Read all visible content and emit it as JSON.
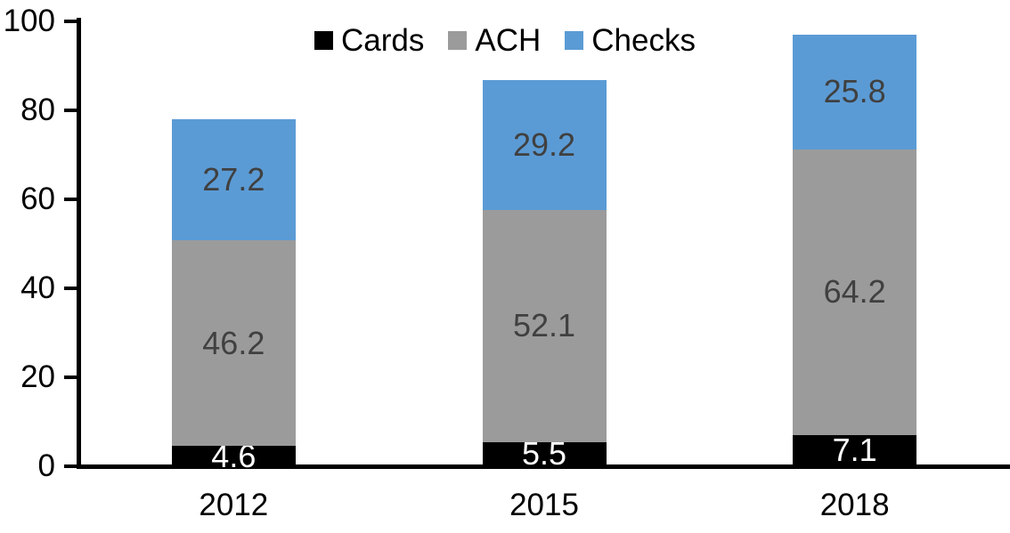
{
  "chart_data": {
    "type": "bar",
    "stacked": true,
    "title": "",
    "xlabel": "",
    "ylabel": "",
    "categories": [
      "2012",
      "2015",
      "2018"
    ],
    "series": [
      {
        "name": "Cards",
        "color": "#000000",
        "label_color": "#FFFFFF",
        "values": [
          4.6,
          5.5,
          7.1
        ]
      },
      {
        "name": "ACH",
        "color": "#9B9B9B",
        "label_color": "#404040",
        "values": [
          46.2,
          52.1,
          64.2
        ]
      },
      {
        "name": "Checks",
        "color": "#5B9BD5",
        "label_color": "#404040",
        "values": [
          27.2,
          29.2,
          25.8
        ]
      }
    ],
    "totals": [
      78.0,
      86.8,
      97.1
    ],
    "ylim": [
      0,
      100
    ],
    "yticks": [
      0,
      20,
      40,
      60,
      80,
      100
    ],
    "grid": false,
    "legend_position": "top-center",
    "legend_labels": [
      "Cards",
      "ACH",
      "Checks"
    ],
    "axis_color": "#000000",
    "data_label_format": "one-decimal",
    "background_color": "#FFFFFF"
  }
}
